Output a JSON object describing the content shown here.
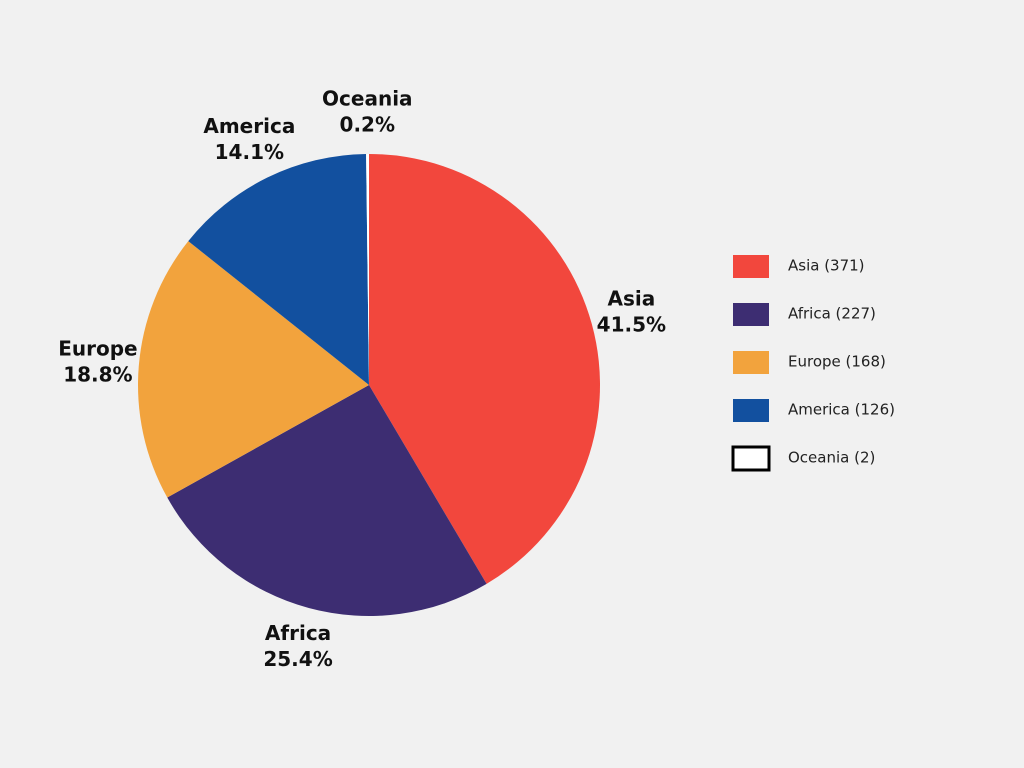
{
  "chart_data": {
    "type": "pie",
    "categories": [
      "Asia",
      "Africa",
      "Europe",
      "America",
      "Oceania"
    ],
    "values": [
      41.5,
      25.4,
      18.8,
      14.1,
      0.2
    ],
    "value_labels": [
      "41.5%",
      "25.4%",
      "18.8%",
      "14.1%",
      "0.2%"
    ],
    "colors": [
      "#f2473d",
      "#3d2d72",
      "#f2a33d",
      "#12509f",
      "#ffffff"
    ],
    "legend_labels": [
      "Asia (371)",
      "Africa (227)",
      "Europe (168)",
      "America (126)",
      "Oceania (2)"
    ],
    "legend": "right"
  }
}
